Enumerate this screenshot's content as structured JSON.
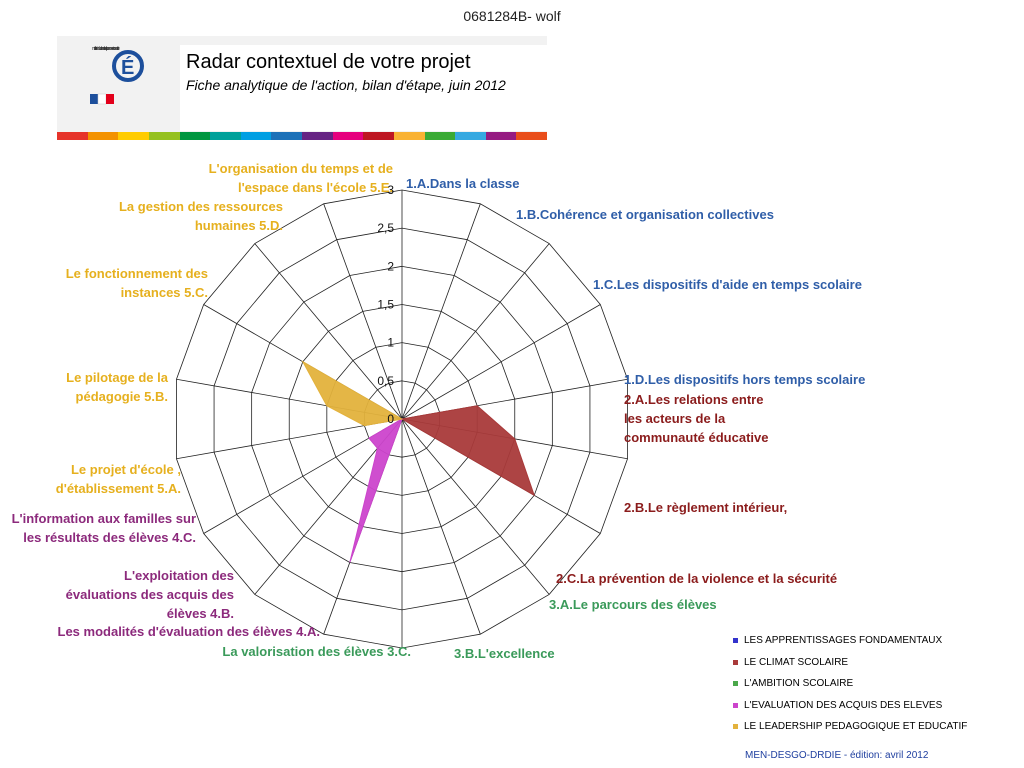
{
  "page": {
    "doc_id": "0681284B- wolf"
  },
  "header": {
    "title": "Radar contextuel de votre projet",
    "subtitle": "Fiche analytique de l'action, bilan d'étape, juin 2012",
    "logo_text": "ministère éducation nationale jeunesse vie associative"
  },
  "strip_colors": [
    "#e6332a",
    "#f39200",
    "#ffcc00",
    "#95c11f",
    "#009640",
    "#00a19a",
    "#009fe3",
    "#1d71b8",
    "#662483",
    "#e6007e",
    "#be1622",
    "#f9b233",
    "#3aaa35",
    "#36a9e1",
    "#951b81",
    "#e94e1b"
  ],
  "chart_data": {
    "type": "radar",
    "title": "",
    "rlim": [
      0,
      3
    ],
    "r_ticks": [
      "0",
      "0,5",
      "1",
      "1,5",
      "2",
      "2,5",
      "3"
    ],
    "grid": true,
    "legend_position": "bottom-right",
    "axes": [
      {
        "label": "1.A.Dans la classe",
        "group": 0
      },
      {
        "label": "1.B.Cohérence et organisation collectives",
        "group": 0
      },
      {
        "label": "1.C.Les dispositifs d'aide en temps scolaire",
        "group": 0
      },
      {
        "label": "1.D.Les dispositifs hors temps scolaire",
        "group": 0
      },
      {
        "label": "2.A.Les relations entre les acteurs de la communauté éducative",
        "group": 1
      },
      {
        "label": "2.B.Le règlement intérieur,",
        "group": 1
      },
      {
        "label": "2.C.La prévention de la violence et la sécurité",
        "group": 1
      },
      {
        "label": "3.A.Le parcours des élèves",
        "group": 2
      },
      {
        "label": "3.B.L'excellence",
        "group": 2
      },
      {
        "label": "La valorisation des élèves 3.C.",
        "group": 2
      },
      {
        "label": "Les modalités d'évaluation des élèves 4.A.",
        "group": 3
      },
      {
        "label": "L'exploitation des évaluations des acquis des élèves 4.B.",
        "group": 3
      },
      {
        "label": "L'information aux familles sur les résultats des élèves 4.C.",
        "group": 3
      },
      {
        "label": "Le projet d'école , d'établissement  5.A.",
        "group": 4
      },
      {
        "label": "Le pilotage de la pédagogie 5.B.",
        "group": 4
      },
      {
        "label": "Le fonctionnement des instances 5.C.",
        "group": 4
      },
      {
        "label": "La gestion des ressources humaines 5.D.",
        "group": 4
      },
      {
        "label": "L'organisation du temps et de l'espace dans l'école 5.E.",
        "group": 4
      }
    ],
    "series": [
      {
        "name": "LES APPRENTISSAGES FONDAMENTAUX",
        "color": "#3333cc",
        "values": [
          0,
          0,
          0,
          0,
          0,
          0,
          0,
          0,
          0,
          0,
          0,
          0,
          0,
          0,
          0,
          0,
          0,
          0
        ]
      },
      {
        "name": "LE CLIMAT SCOLAIRE",
        "color": "#a93a3a",
        "values": [
          0,
          0,
          0,
          0,
          1,
          1.5,
          2,
          0,
          0,
          0,
          0,
          0,
          0,
          0,
          0,
          0,
          0,
          0
        ]
      },
      {
        "name": "L'AMBITION SCOLAIRE",
        "color": "#4aa84a",
        "values": [
          0,
          0,
          0,
          0,
          0,
          0,
          0,
          0,
          0,
          0,
          0,
          0,
          0,
          0,
          0,
          0,
          0,
          0
        ]
      },
      {
        "name": "L'EVALUATION DES ACQUIS DES ELEVES",
        "color": "#cc44cc",
        "values": [
          0,
          0,
          0,
          0,
          0,
          0,
          0,
          0,
          0,
          0,
          2,
          0.5,
          0.5,
          0,
          0,
          0,
          0,
          0
        ]
      },
      {
        "name": "LE LEADERSHIP PEDAGOGIQUE ET EDUCATIF",
        "color": "#e3b23c",
        "values": [
          0,
          0,
          0,
          0,
          0,
          0,
          0,
          0,
          0,
          0,
          0,
          0,
          0,
          0.5,
          1,
          1.5,
          0,
          0
        ]
      }
    ],
    "label_colors": [
      "#2f5ea8",
      "#8b1c1c",
      "#3a9a5a",
      "#8c2a7c",
      "#e6b01e"
    ]
  },
  "footer": "MEN-DESGO-DRDIE - édition: avril 2012"
}
